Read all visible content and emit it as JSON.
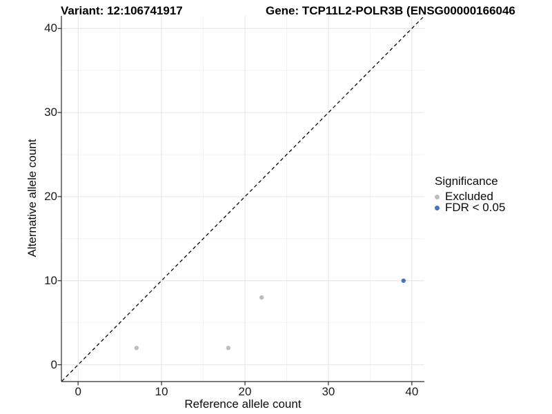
{
  "chart_data": {
    "type": "scatter",
    "title_left": "Variant: 12:106741917",
    "title_right": "Gene: TCP11L2-POLR3B (ENSG00000166046",
    "xlabel": "Reference allele count",
    "ylabel": "Alternative allele count",
    "xlim": [
      -2,
      41.5
    ],
    "ylim": [
      -2,
      41.5
    ],
    "x_ticks": [
      0,
      10,
      20,
      30,
      40
    ],
    "y_ticks": [
      0,
      10,
      20,
      30,
      40
    ],
    "x_minor_ticks": [
      5,
      15,
      25,
      35
    ],
    "y_minor_ticks": [
      5,
      15,
      25,
      35
    ],
    "grid": "on",
    "identity_line": {
      "slope": 1,
      "intercept": 0,
      "style": "dashed",
      "color": "#000000"
    },
    "legend": {
      "title": "Significance",
      "position": "right",
      "items": [
        {
          "label": "Excluded",
          "color": "#bdbdbd"
        },
        {
          "label": "FDR < 0.05",
          "color": "#4575b4"
        }
      ]
    },
    "series": [
      {
        "name": "Excluded",
        "color": "#bdbdbd",
        "points": [
          [
            7,
            2
          ],
          [
            18,
            2
          ],
          [
            22,
            8
          ]
        ]
      },
      {
        "name": "FDR < 0.05",
        "color": "#4575b4",
        "points": [
          [
            39,
            10
          ]
        ]
      }
    ],
    "colors": {
      "major_grid": "#e5e5e5",
      "minor_grid": "#f2f2f2",
      "axis_line": "#2a2a2a"
    }
  }
}
